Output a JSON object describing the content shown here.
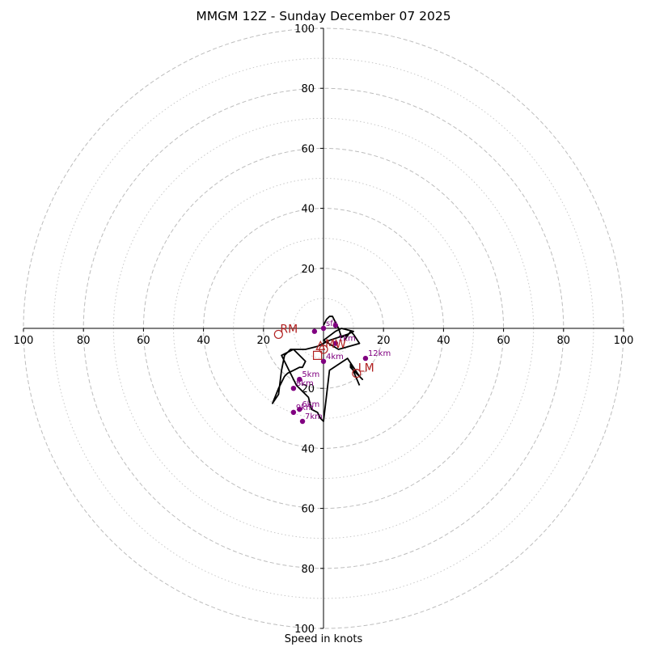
{
  "chart_data": {
    "type": "scatter",
    "chart_kind": "hodograph",
    "title": "MMGM 12Z - Sunday December 07 2025",
    "xlabel": "Speed in knots",
    "ylabel": "",
    "xlim": [
      -100,
      100
    ],
    "ylim": [
      -100,
      100
    ],
    "range_rings": [
      20,
      40,
      60,
      80,
      100
    ],
    "minor_rings": [
      10,
      30,
      50,
      70,
      90
    ],
    "grid": true,
    "x_tick_labels": [
      "100",
      "80",
      "60",
      "40",
      "20",
      "20",
      "40",
      "60",
      "80",
      "100"
    ],
    "y_tick_labels": [
      "100",
      "80",
      "60",
      "40",
      "20",
      "20",
      "40",
      "60",
      "80",
      "100"
    ],
    "x_tick_values": [
      -100,
      -80,
      -60,
      -40,
      -20,
      20,
      40,
      60,
      80,
      100
    ],
    "y_tick_values": [
      100,
      80,
      60,
      40,
      20,
      -20,
      -40,
      -60,
      -80,
      -100
    ],
    "hodograph_trace": {
      "color": "#000000",
      "u": [
        0,
        1,
        2,
        3,
        5,
        6,
        8,
        7,
        9,
        10,
        12,
        5,
        0,
        4,
        6,
        10,
        10,
        8,
        2,
        -2,
        -6,
        -8,
        -10,
        -11,
        -12,
        -13,
        -14,
        -15,
        -17,
        -15,
        -13,
        -12,
        -10,
        -8,
        -7,
        -6,
        -10,
        -12,
        -14,
        -13,
        -11,
        -9,
        -7,
        -5,
        -4,
        -2,
        -1,
        0,
        2,
        8,
        12,
        13,
        9,
        9,
        12
      ],
      "v": [
        1,
        3,
        4,
        4,
        0,
        -3,
        -2,
        -4,
        -1,
        -2,
        -5,
        -7,
        -4,
        -1,
        0,
        -1,
        -1,
        -2,
        -4,
        -6,
        -7,
        -7,
        -7,
        -7,
        -8,
        -9,
        -14,
        -22,
        -25,
        -20,
        -16,
        -15,
        -14,
        -13,
        -13,
        -11,
        -7,
        -8,
        -9,
        -11,
        -15,
        -19,
        -21,
        -23,
        -27,
        -28,
        -30,
        -31,
        -14,
        -10,
        -16,
        -17,
        -13,
        -12,
        -19
      ]
    },
    "height_markers": {
      "color": "#800080",
      "points": [
        {
          "label": "sfc",
          "u": 0,
          "v": 0
        },
        {
          "label": "",
          "u": 4,
          "v": 1
        },
        {
          "label": "",
          "u": -3,
          "v": -1
        },
        {
          "label": "1km",
          "u": 4,
          "v": -5
        },
        {
          "label": "4km",
          "u": 0,
          "v": -11
        },
        {
          "label": "12km",
          "u": 14,
          "v": -10
        },
        {
          "label": "5km",
          "u": -8,
          "v": -17
        },
        {
          "label": "8km",
          "u": -10,
          "v": -20
        },
        {
          "label": "6km",
          "u": -8,
          "v": -27
        },
        {
          "label": "9km",
          "u": -10,
          "v": -28
        },
        {
          "label": "7km",
          "u": -7,
          "v": -31
        }
      ]
    },
    "storm_motions": {
      "color": "#b22222",
      "points": [
        {
          "label": "RM",
          "u": -15,
          "v": -2,
          "marker": "circle"
        },
        {
          "label": "MW",
          "u": 0,
          "v": -7,
          "marker": "circle"
        },
        {
          "label": "LM",
          "u": 11,
          "v": -15,
          "marker": "circle"
        },
        {
          "label": "",
          "u": -2,
          "v": -9,
          "marker": "square"
        },
        {
          "label": "",
          "u": -1,
          "v": -6,
          "marker": "triangle"
        }
      ]
    }
  }
}
